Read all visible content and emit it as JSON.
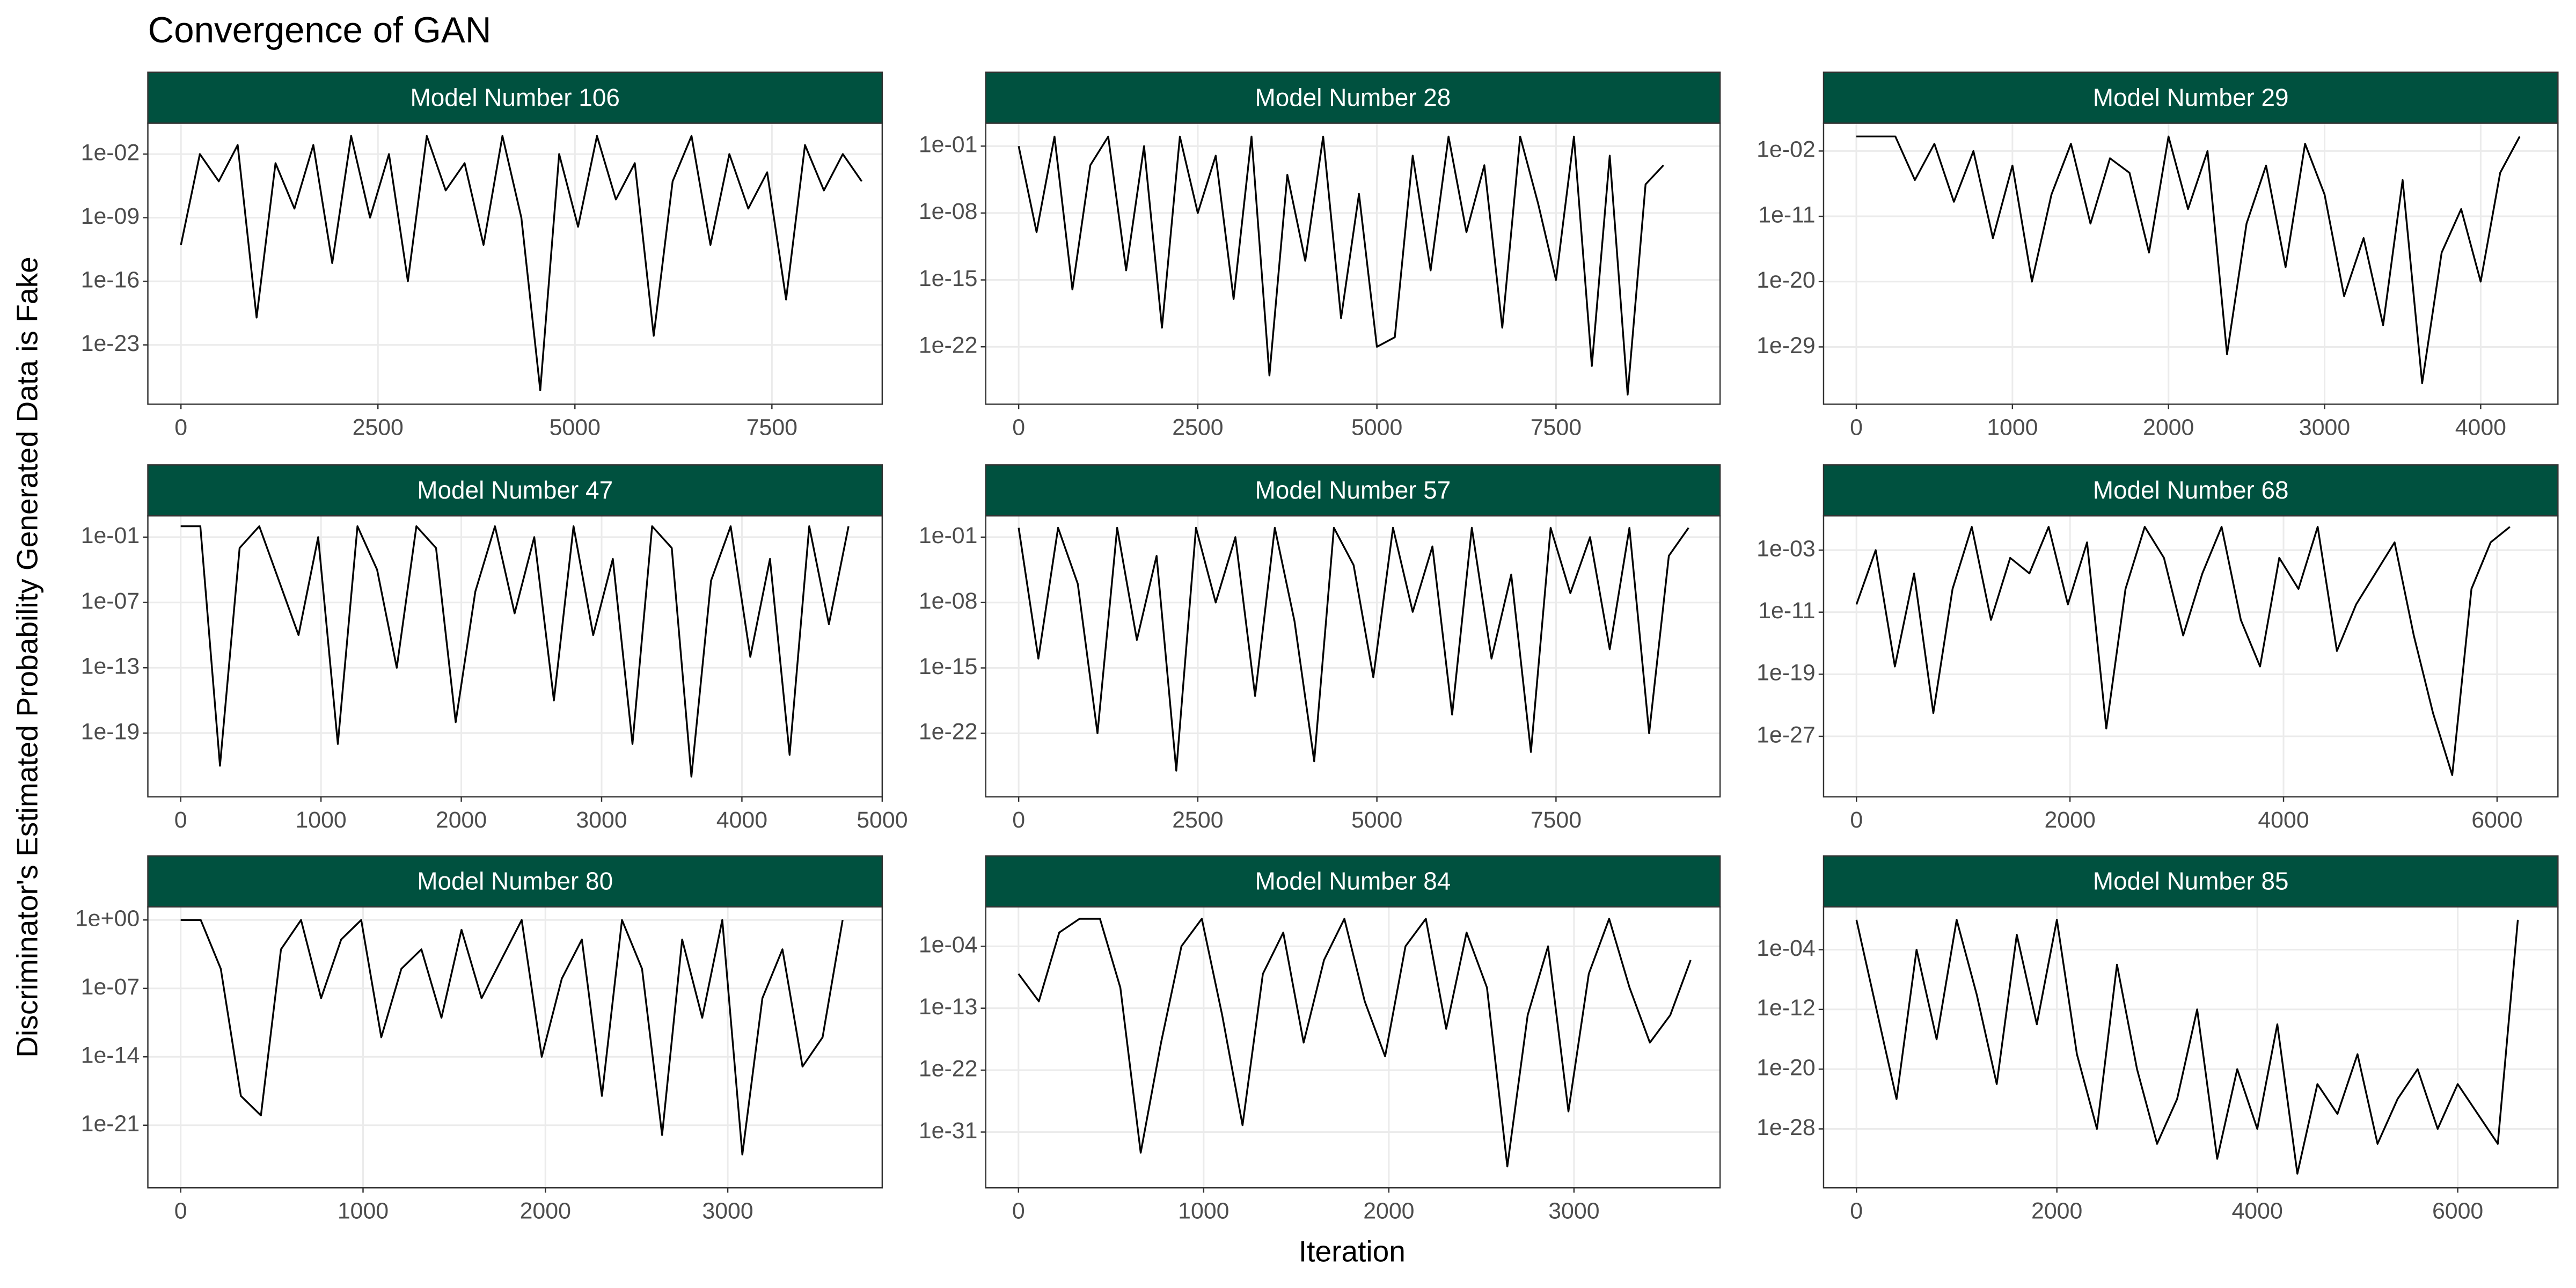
{
  "title": "Convergence of GAN",
  "xlabel": "Iteration",
  "ylabel": "Discriminator's Estimated Probability Generated Data is Fake",
  "strip_color": "#00513f",
  "grid": true,
  "chart_data": [
    {
      "type": "line",
      "title": "Model Number 106",
      "color": "#000000",
      "log_y": true,
      "x": [
        0,
        240,
        480,
        720,
        960,
        1200,
        1440,
        1680,
        1920,
        2160,
        2400,
        2640,
        2880,
        3120,
        3360,
        3600,
        3840,
        4080,
        4320,
        4560,
        4800,
        5040,
        5280,
        5520,
        5760,
        6000,
        6240,
        6480,
        6720,
        6960,
        7200,
        7440,
        7680,
        7920,
        8160,
        8400,
        8640
      ],
      "values": [
        1e-12,
        0.01,
        1e-05,
        0.1,
        1e-20,
        0.001,
        1e-08,
        0.1,
        1e-14,
        1,
        1e-09,
        0.01,
        1e-16,
        1,
        1e-06,
        0.001,
        1e-12,
        1,
        1e-09,
        1e-28,
        0.01,
        1e-10,
        1,
        1e-07,
        0.001,
        1e-22,
        1e-05,
        1,
        1e-12,
        0.01,
        1e-08,
        0.0001,
        1e-18,
        0.1,
        1e-06,
        0.01,
        1e-05
      ],
      "xlim": [
        -420,
        8900
      ],
      "xticks": [
        0,
        2500,
        5000,
        7500
      ],
      "ylim": [
        3e-30,
        25
      ],
      "yticks": [
        {
          "value": 0.01,
          "label": "1e-02"
        },
        {
          "value": 1e-09,
          "label": "1e-09"
        },
        {
          "value": 1e-16,
          "label": "1e-16"
        },
        {
          "value": 1e-23,
          "label": "1e-23"
        }
      ]
    },
    {
      "type": "line",
      "title": "Model Number 28",
      "color": "#000000",
      "log_y": true,
      "x": [
        0,
        250,
        500,
        750,
        1000,
        1250,
        1500,
        1750,
        2000,
        2250,
        2500,
        2750,
        3000,
        3250,
        3500,
        3750,
        4000,
        4250,
        4500,
        4750,
        5000,
        5250,
        5500,
        5750,
        6000,
        6250,
        6500,
        6750,
        7000,
        7250,
        7500,
        7750,
        8000,
        8250,
        8500,
        8750,
        9000
      ],
      "values": [
        0.1,
        1e-10,
        1,
        1e-16,
        0.001,
        1,
        1e-14,
        0.1,
        1e-20,
        1,
        1e-08,
        0.01,
        1e-17,
        1,
        1e-25,
        0.0001,
        1e-13,
        1,
        1e-19,
        1e-06,
        1e-22,
        1e-21,
        0.01,
        1e-14,
        1,
        1e-10,
        0.001,
        1e-20,
        1,
        1e-07,
        1e-15,
        1,
        1e-24,
        0.01,
        1e-27,
        1e-05,
        0.001
      ],
      "xlim": [
        -460,
        9790
      ],
      "xticks": [
        0,
        2500,
        5000,
        7500
      ],
      "ylim": [
        1e-28,
        25
      ],
      "yticks": [
        {
          "value": 0.1,
          "label": "1e-01"
        },
        {
          "value": 1e-08,
          "label": "1e-08"
        },
        {
          "value": 1e-15,
          "label": "1e-15"
        },
        {
          "value": 1e-22,
          "label": "1e-22"
        }
      ]
    },
    {
      "type": "line",
      "title": "Model Number 29",
      "color": "#000000",
      "log_y": true,
      "x": [
        0,
        125,
        250,
        375,
        500,
        625,
        750,
        875,
        1000,
        1125,
        1250,
        1375,
        1500,
        1625,
        1750,
        1875,
        2000,
        2125,
        2250,
        2375,
        2500,
        2625,
        2750,
        2875,
        3000,
        3125,
        3250,
        3375,
        3500,
        3625,
        3750,
        3875,
        4000,
        4125,
        4250
      ],
      "values": [
        1,
        1,
        1,
        1e-06,
        0.1,
        1e-09,
        0.01,
        1e-14,
        0.0001,
        1e-20,
        1e-08,
        0.1,
        1e-12,
        0.001,
        1e-05,
        1e-16,
        1,
        1e-10,
        0.01,
        1e-30,
        1e-12,
        0.0001,
        1e-18,
        0.1,
        1e-08,
        1e-22,
        1e-14,
        1e-26,
        1e-06,
        1e-34,
        1e-16,
        1e-10,
        1e-20,
        1e-05,
        1
      ],
      "xlim": [
        -210,
        4495
      ],
      "xticks": [
        0,
        1000,
        2000,
        3000,
        4000
      ],
      "ylim": [
        1.3e-37,
        68
      ],
      "yticks": [
        {
          "value": 0.01,
          "label": "1e-02"
        },
        {
          "value": 1e-11,
          "label": "1e-11"
        },
        {
          "value": 1e-20,
          "label": "1e-20"
        },
        {
          "value": 1e-29,
          "label": "1e-29"
        }
      ]
    },
    {
      "type": "line",
      "title": "Model Number 47",
      "color": "#000000",
      "log_y": true,
      "x": [
        0,
        140,
        280,
        420,
        560,
        700,
        840,
        980,
        1120,
        1260,
        1400,
        1540,
        1680,
        1820,
        1960,
        2100,
        2240,
        2380,
        2520,
        2660,
        2800,
        2940,
        3080,
        3220,
        3360,
        3500,
        3640,
        3780,
        3920,
        4060,
        4200,
        4340,
        4480,
        4620,
        4760
      ],
      "values": [
        1,
        1,
        1e-22,
        0.01,
        1,
        1e-05,
        1e-10,
        0.1,
        1e-20,
        1,
        0.0001,
        1e-13,
        1,
        0.01,
        1e-18,
        1e-06,
        1,
        1e-08,
        0.1,
        1e-16,
        1,
        1e-10,
        0.001,
        1e-20,
        1,
        0.01,
        1e-23,
        1e-05,
        1,
        1e-12,
        0.001,
        1e-21,
        1,
        1e-09,
        1
      ],
      "xlim": [
        -234,
        5000
      ],
      "xticks": [
        0,
        1000,
        2000,
        3000,
        4000,
        5000
      ],
      "ylim": [
        1.4e-25,
        9
      ],
      "yticks": [
        {
          "value": 0.1,
          "label": "1e-01"
        },
        {
          "value": 1e-07,
          "label": "1e-07"
        },
        {
          "value": 1e-13,
          "label": "1e-13"
        },
        {
          "value": 1e-19,
          "label": "1e-19"
        }
      ]
    },
    {
      "type": "line",
      "title": "Model Number 57",
      "color": "#000000",
      "log_y": true,
      "x": [
        0,
        275,
        550,
        825,
        1100,
        1375,
        1650,
        1925,
        2200,
        2475,
        2750,
        3025,
        3300,
        3575,
        3850,
        4125,
        4400,
        4675,
        4950,
        5225,
        5500,
        5775,
        6050,
        6325,
        6600,
        6875,
        7150,
        7425,
        7700,
        7975,
        8250,
        8525,
        8800,
        9075,
        9350
      ],
      "values": [
        1,
        1e-14,
        1,
        1e-06,
        1e-22,
        1,
        1e-12,
        0.001,
        1e-26,
        1,
        1e-08,
        0.1,
        1e-18,
        1,
        1e-10,
        1e-25,
        1,
        0.0001,
        1e-16,
        1,
        1e-09,
        0.01,
        1e-20,
        1,
        1e-14,
        1e-05,
        1e-24,
        1,
        1e-07,
        0.1,
        1e-13,
        1,
        1e-22,
        0.001,
        1
      ],
      "xlim": [
        -460,
        9790
      ],
      "xticks": [
        0,
        2500,
        5000,
        7500
      ],
      "ylim": [
        1.6e-29,
        19
      ],
      "yticks": [
        {
          "value": 0.1,
          "label": "1e-01"
        },
        {
          "value": 1e-08,
          "label": "1e-08"
        },
        {
          "value": 1e-15,
          "label": "1e-15"
        },
        {
          "value": 1e-22,
          "label": "1e-22"
        }
      ]
    },
    {
      "type": "line",
      "title": "Model Number 68",
      "color": "#000000",
      "log_y": true,
      "x": [
        0,
        180,
        360,
        540,
        720,
        900,
        1080,
        1260,
        1440,
        1620,
        1800,
        1980,
        2160,
        2340,
        2520,
        2700,
        2880,
        3060,
        3240,
        3420,
        3600,
        3780,
        3960,
        4140,
        4320,
        4500,
        4680,
        4860,
        5040,
        5220,
        5400,
        5580,
        5760,
        5940,
        6120
      ],
      "values": [
        1e-10,
        0.001,
        1e-18,
        1e-06,
        1e-24,
        1e-08,
        1,
        1e-12,
        0.0001,
        1e-06,
        1,
        1e-10,
        0.01,
        1e-26,
        1e-08,
        1,
        0.0001,
        1e-14,
        1e-06,
        1,
        1e-12,
        1e-18,
        0.0001,
        1e-08,
        1,
        1e-16,
        1e-10,
        1e-06,
        0.01,
        1e-14,
        1e-24,
        1e-32,
        1e-08,
        0.01,
        1
      ],
      "xlim": [
        -308,
        6570
      ],
      "xticks": [
        0,
        2000,
        4000,
        6000
      ],
      "ylim": [
        1.6e-35,
        26
      ],
      "yticks": [
        {
          "value": 0.001,
          "label": "1e-03"
        },
        {
          "value": 1e-11,
          "label": "1e-11"
        },
        {
          "value": 1e-19,
          "label": "1e-19"
        },
        {
          "value": 1e-27,
          "label": "1e-27"
        }
      ]
    },
    {
      "type": "line",
      "title": "Model Number 80",
      "color": "#000000",
      "log_y": true,
      "x": [
        0,
        110,
        220,
        330,
        440,
        550,
        660,
        770,
        880,
        990,
        1100,
        1210,
        1320,
        1430,
        1540,
        1650,
        1760,
        1870,
        1980,
        2090,
        2200,
        2310,
        2420,
        2530,
        2640,
        2750,
        2860,
        2970,
        3080,
        3190,
        3300,
        3410,
        3520,
        3630
      ],
      "values": [
        1,
        1,
        1e-05,
        1e-18,
        1e-20,
        0.001,
        1,
        1e-08,
        0.01,
        1,
        1e-12,
        1e-05,
        0.001,
        1e-10,
        0.1,
        1e-08,
        0.0001,
        1,
        1e-14,
        1e-06,
        0.01,
        1e-18,
        1,
        1e-05,
        1e-22,
        0.01,
        1e-10,
        1,
        1e-24,
        1e-08,
        0.001,
        1e-15,
        1e-12,
        1
      ],
      "xlim": [
        -180,
        3847
      ],
      "xticks": [
        0,
        1000,
        2000,
        3000
      ],
      "ylim": [
        4e-28,
        22
      ],
      "yticks": [
        {
          "value": 1,
          "label": "1e+00"
        },
        {
          "value": 1e-07,
          "label": "1e-07"
        },
        {
          "value": 1e-14,
          "label": "1e-14"
        },
        {
          "value": 1e-21,
          "label": "1e-21"
        }
      ]
    },
    {
      "type": "line",
      "title": "Model Number 84",
      "color": "#000000",
      "log_y": true,
      "x": [
        0,
        110,
        220,
        330,
        440,
        550,
        660,
        770,
        880,
        990,
        1100,
        1210,
        1320,
        1430,
        1540,
        1650,
        1760,
        1870,
        1980,
        2090,
        2200,
        2310,
        2420,
        2530,
        2640,
        2750,
        2860,
        2970,
        3080,
        3190,
        3300,
        3410,
        3520,
        3630
      ],
      "values": [
        1e-08,
        1e-12,
        0.01,
        1,
        1,
        1e-10,
        1e-34,
        1e-18,
        0.0001,
        1,
        1e-14,
        1e-30,
        1e-08,
        0.01,
        1e-18,
        1e-06,
        1,
        1e-12,
        1e-20,
        0.0001,
        1,
        1e-16,
        0.01,
        1e-10,
        1e-36,
        1e-14,
        0.0001,
        1e-28,
        1e-08,
        1,
        1e-10,
        1e-18,
        1e-14,
        1e-06
      ],
      "xlim": [
        -177,
        3789
      ],
      "xticks": [
        0,
        1000,
        2000,
        3000
      ],
      "ylim": [
        8e-40,
        54
      ],
      "yticks": [
        {
          "value": 0.0001,
          "label": "1e-04"
        },
        {
          "value": 1e-13,
          "label": "1e-13"
        },
        {
          "value": 1e-22,
          "label": "1e-22"
        },
        {
          "value": 1e-31,
          "label": "1e-31"
        }
      ]
    },
    {
      "type": "line",
      "title": "Model Number 85",
      "color": "#000000",
      "log_y": true,
      "x": [
        0,
        200,
        400,
        600,
        800,
        1000,
        1200,
        1400,
        1600,
        1800,
        2000,
        2200,
        2400,
        2600,
        2800,
        3000,
        3200,
        3400,
        3600,
        3800,
        4000,
        4200,
        4400,
        4600,
        4800,
        5000,
        5200,
        5400,
        5600,
        5800,
        6000,
        6200,
        6400,
        6600
      ],
      "values": [
        1,
        1e-12,
        1e-24,
        0.0001,
        1e-16,
        1,
        1e-10,
        1e-22,
        0.01,
        1e-14,
        1,
        1e-18,
        1e-28,
        1e-06,
        1e-20,
        1e-30,
        1e-24,
        1e-12,
        1e-32,
        1e-20,
        1e-28,
        1e-14,
        1e-34,
        1e-22,
        1e-26,
        1e-18,
        1e-30,
        1e-24,
        1e-20,
        1e-28,
        1e-22,
        1e-26,
        1e-30,
        1
      ],
      "xlim": [
        -328,
        7000
      ],
      "xticks": [
        0,
        2000,
        4000,
        6000
      ],
      "ylim": [
        1.3e-36,
        54
      ],
      "yticks": [
        {
          "value": 0.0001,
          "label": "1e-04"
        },
        {
          "value": 1e-12,
          "label": "1e-12"
        },
        {
          "value": 1e-20,
          "label": "1e-20"
        },
        {
          "value": 1e-28,
          "label": "1e-28"
        }
      ]
    }
  ]
}
